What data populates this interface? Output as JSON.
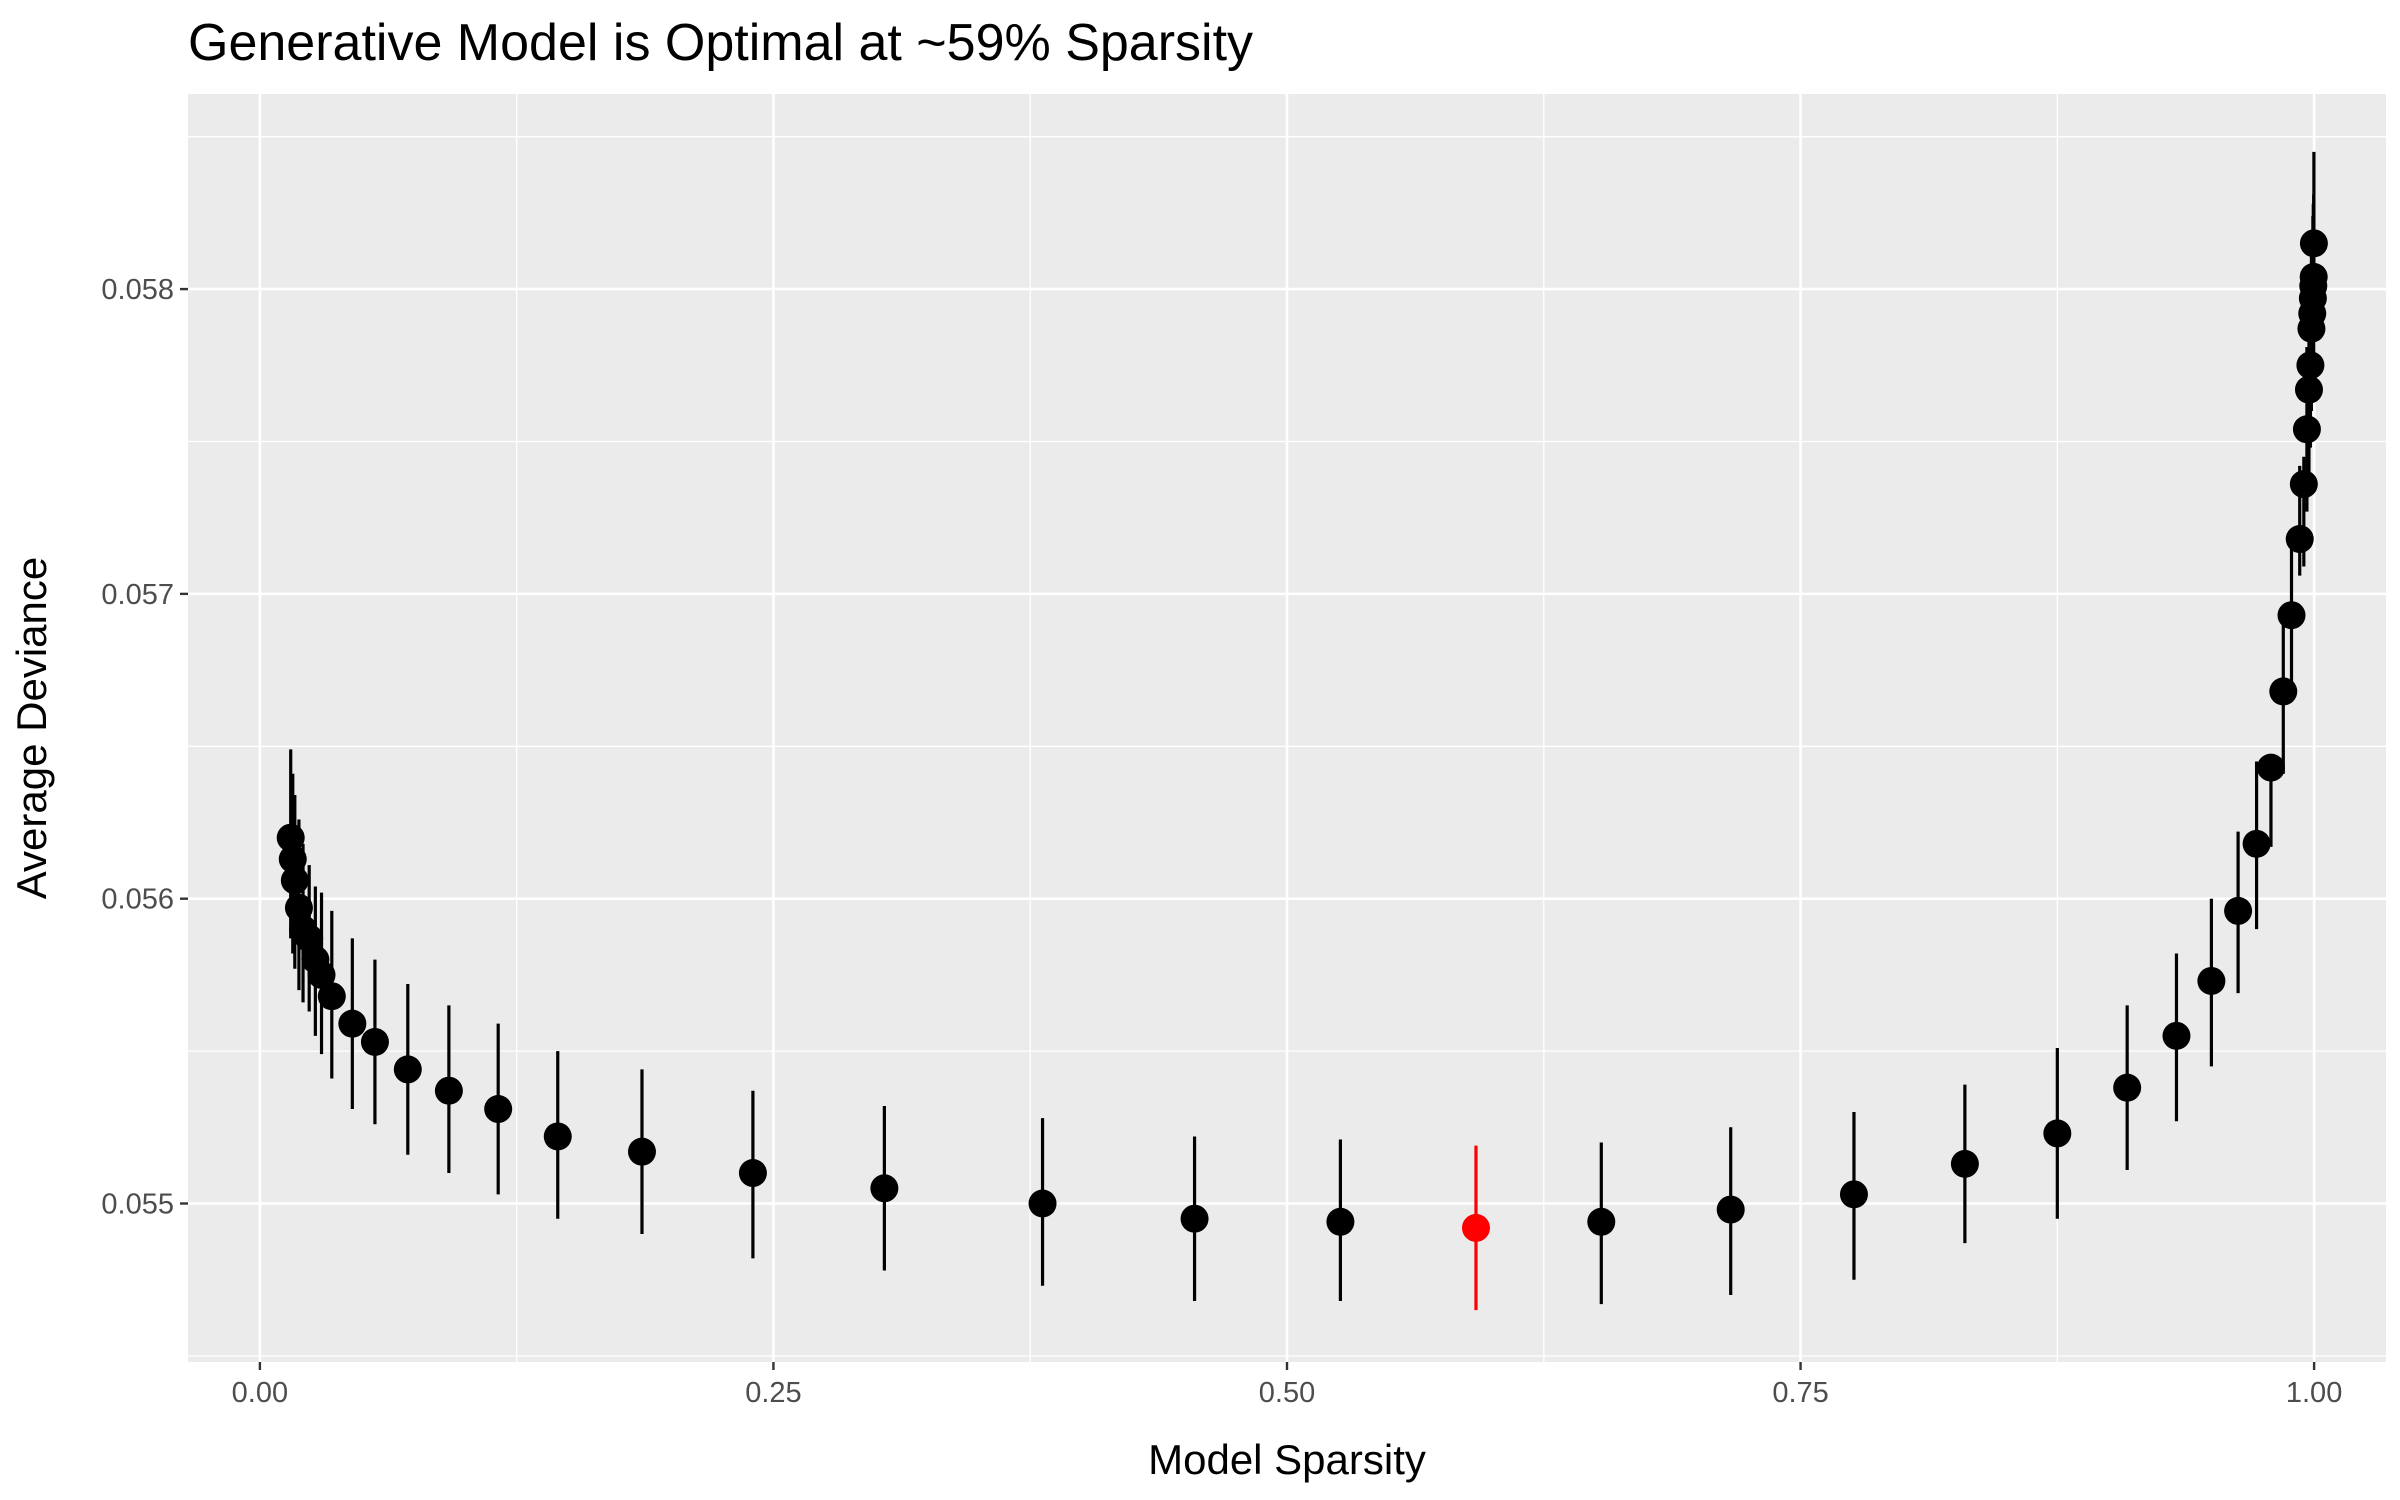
{
  "chart_data": {
    "type": "scatter",
    "title": "Generative Model is Optimal at ~59% Sparsity",
    "xlabel": "Model Sparsity",
    "ylabel": "Average Deviance",
    "xlim": [
      -0.035,
      1.035
    ],
    "ylim": [
      0.05448,
      0.05864
    ],
    "x_ticks": [
      0,
      0.25,
      0.5,
      0.75,
      1
    ],
    "x_tick_labels": [
      "0.00",
      "0.25",
      "0.50",
      "0.75",
      "1.00"
    ],
    "y_ticks": [
      0.055,
      0.056,
      0.057,
      0.058
    ],
    "y_tick_labels": [
      "0.055",
      "0.056",
      "0.057",
      "0.058"
    ],
    "grid": true,
    "panel_background": "#ebebeb",
    "grid_color": "#ffffff",
    "point_color": "#000000",
    "highlight_color": "#ff0000",
    "points": [
      {
        "x": 0.015,
        "y": 0.0562,
        "lo": 0.05587,
        "hi": 0.05649
      },
      {
        "x": 0.016,
        "y": 0.05613,
        "lo": 0.05582,
        "hi": 0.05641
      },
      {
        "x": 0.017,
        "y": 0.05606,
        "lo": 0.05577,
        "hi": 0.05634
      },
      {
        "x": 0.019,
        "y": 0.05597,
        "lo": 0.0557,
        "hi": 0.05626
      },
      {
        "x": 0.021,
        "y": 0.0559,
        "lo": 0.05566,
        "hi": 0.05618
      },
      {
        "x": 0.024,
        "y": 0.05587,
        "lo": 0.05563,
        "hi": 0.05611
      },
      {
        "x": 0.027,
        "y": 0.0558,
        "lo": 0.05555,
        "hi": 0.05604
      },
      {
        "x": 0.03,
        "y": 0.05575,
        "lo": 0.05549,
        "hi": 0.05602
      },
      {
        "x": 0.035,
        "y": 0.05568,
        "lo": 0.05541,
        "hi": 0.05596
      },
      {
        "x": 0.045,
        "y": 0.05559,
        "lo": 0.05531,
        "hi": 0.05587
      },
      {
        "x": 0.056,
        "y": 0.05553,
        "lo": 0.05526,
        "hi": 0.0558
      },
      {
        "x": 0.072,
        "y": 0.05544,
        "lo": 0.05516,
        "hi": 0.05572
      },
      {
        "x": 0.092,
        "y": 0.05537,
        "lo": 0.0551,
        "hi": 0.05565
      },
      {
        "x": 0.116,
        "y": 0.05531,
        "lo": 0.05503,
        "hi": 0.05559
      },
      {
        "x": 0.145,
        "y": 0.05522,
        "lo": 0.05495,
        "hi": 0.0555
      },
      {
        "x": 0.186,
        "y": 0.05517,
        "lo": 0.0549,
        "hi": 0.05544
      },
      {
        "x": 0.24,
        "y": 0.0551,
        "lo": 0.05482,
        "hi": 0.05537
      },
      {
        "x": 0.304,
        "y": 0.05505,
        "lo": 0.05478,
        "hi": 0.05532
      },
      {
        "x": 0.381,
        "y": 0.055,
        "lo": 0.05473,
        "hi": 0.05528
      },
      {
        "x": 0.455,
        "y": 0.05495,
        "lo": 0.05468,
        "hi": 0.05522
      },
      {
        "x": 0.526,
        "y": 0.05494,
        "lo": 0.05468,
        "hi": 0.05521
      },
      {
        "x": 0.592,
        "y": 0.05492,
        "lo": 0.05465,
        "hi": 0.05519,
        "highlight": true
      },
      {
        "x": 0.653,
        "y": 0.05494,
        "lo": 0.05467,
        "hi": 0.0552
      },
      {
        "x": 0.716,
        "y": 0.05498,
        "lo": 0.0547,
        "hi": 0.05525
      },
      {
        "x": 0.776,
        "y": 0.05503,
        "lo": 0.05475,
        "hi": 0.0553
      },
      {
        "x": 0.83,
        "y": 0.05513,
        "lo": 0.05487,
        "hi": 0.05539
      },
      {
        "x": 0.875,
        "y": 0.05523,
        "lo": 0.05495,
        "hi": 0.05551
      },
      {
        "x": 0.909,
        "y": 0.05538,
        "lo": 0.05511,
        "hi": 0.05565
      },
      {
        "x": 0.933,
        "y": 0.05555,
        "lo": 0.05527,
        "hi": 0.05582
      },
      {
        "x": 0.95,
        "y": 0.05573,
        "lo": 0.05545,
        "hi": 0.056
      },
      {
        "x": 0.963,
        "y": 0.05596,
        "lo": 0.05569,
        "hi": 0.05622
      },
      {
        "x": 0.972,
        "y": 0.05618,
        "lo": 0.0559,
        "hi": 0.05645
      },
      {
        "x": 0.979,
        "y": 0.05643,
        "lo": 0.05617,
        "hi": 0.05646
      },
      {
        "x": 0.985,
        "y": 0.05668,
        "lo": 0.05641,
        "hi": 0.05694
      },
      {
        "x": 0.989,
        "y": 0.05693,
        "lo": 0.05667,
        "hi": 0.05721
      },
      {
        "x": 0.993,
        "y": 0.05718,
        "lo": 0.05706,
        "hi": 0.05742
      },
      {
        "x": 0.995,
        "y": 0.05736,
        "lo": 0.05709,
        "hi": 0.05745
      },
      {
        "x": 0.9965,
        "y": 0.05754,
        "lo": 0.05727,
        "hi": 0.05781
      },
      {
        "x": 0.9975,
        "y": 0.05767,
        "lo": 0.0574,
        "hi": 0.05794
      },
      {
        "x": 0.9982,
        "y": 0.05775,
        "lo": 0.05748,
        "hi": 0.05802
      },
      {
        "x": 0.9987,
        "y": 0.05787,
        "lo": 0.0576,
        "hi": 0.05814
      },
      {
        "x": 0.9991,
        "y": 0.05792,
        "lo": 0.05765,
        "hi": 0.05819
      },
      {
        "x": 0.9994,
        "y": 0.05797,
        "lo": 0.0577,
        "hi": 0.05824
      },
      {
        "x": 0.9996,
        "y": 0.05801,
        "lo": 0.05774,
        "hi": 0.05828
      },
      {
        "x": 0.9998,
        "y": 0.05804,
        "lo": 0.05777,
        "hi": 0.05831
      },
      {
        "x": 0.9999,
        "y": 0.05815,
        "lo": 0.05788,
        "hi": 0.05845
      }
    ]
  }
}
